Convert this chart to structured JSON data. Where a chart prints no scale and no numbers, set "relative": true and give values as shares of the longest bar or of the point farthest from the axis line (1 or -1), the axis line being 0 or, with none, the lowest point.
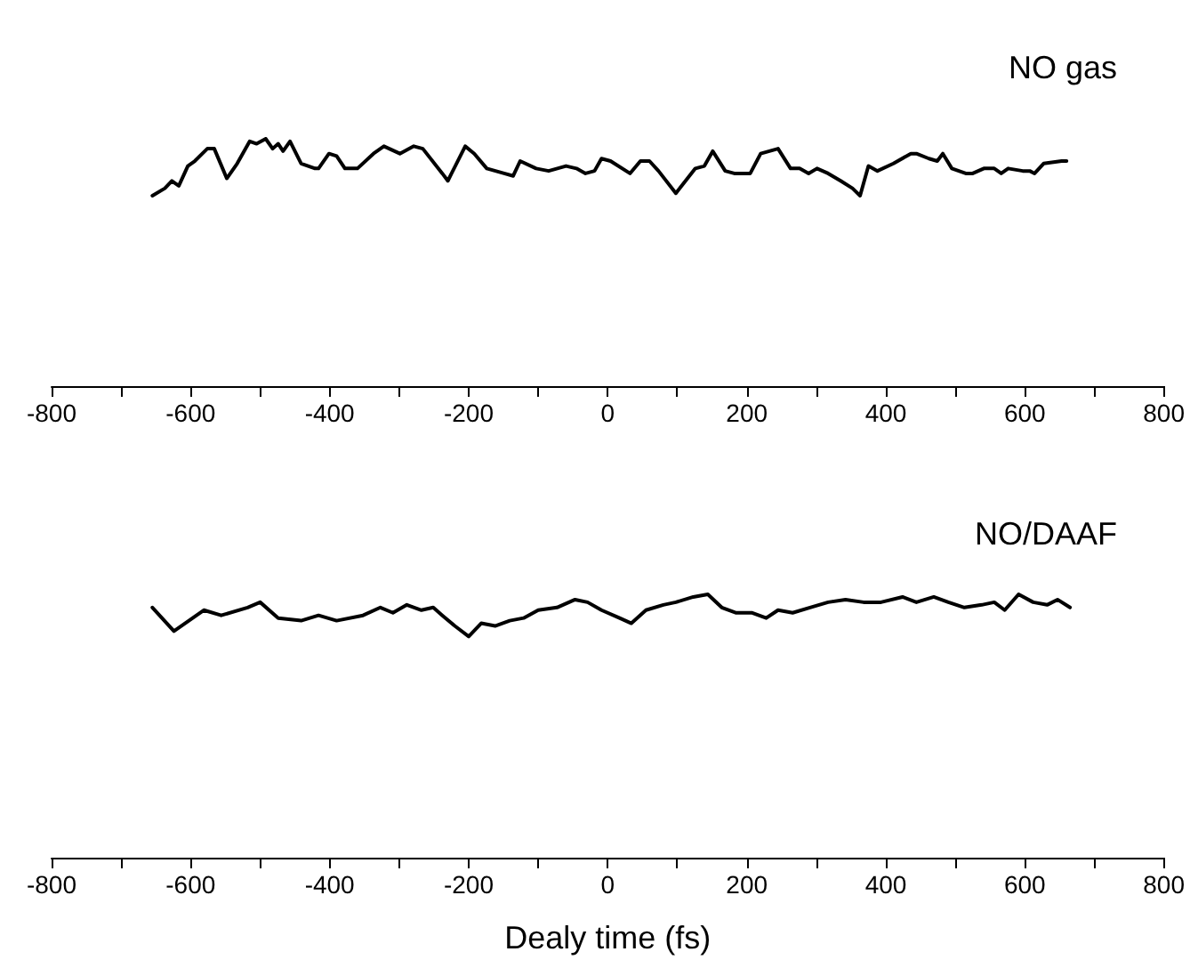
{
  "chart_data": [
    {
      "type": "line",
      "title": "NO gas",
      "relative": true,
      "marker": "none",
      "xlim": [
        -800,
        800
      ],
      "xticks": [
        -800,
        {
          "value": -700,
          "label": null
        },
        -600,
        {
          "value": -500,
          "label": null
        },
        -400,
        {
          "value": -300,
          "label": null
        },
        -200,
        {
          "value": -100,
          "label": null
        },
        0,
        {
          "value": 100,
          "label": null
        },
        200,
        {
          "value": 300,
          "label": null
        },
        400,
        {
          "value": 500,
          "label": null
        },
        600,
        {
          "value": 700,
          "label": null
        },
        800
      ],
      "x": [
        -655,
        -637,
        -627,
        -617,
        -604,
        -594,
        -576,
        -566,
        -548,
        -533,
        -515,
        -505,
        -492,
        -482,
        -474,
        -467,
        -457,
        -441,
        -421,
        -416,
        -401,
        -390,
        -378,
        -360,
        -337,
        -322,
        -299,
        -279,
        -266,
        -238,
        -230,
        -205,
        -192,
        -174,
        -149,
        -136,
        -126,
        -103,
        -85,
        -60,
        -45,
        -32,
        -19,
        -9,
        4,
        32,
        47,
        60,
        73,
        98,
        126,
        139,
        151,
        169,
        182,
        205,
        220,
        245,
        263,
        276,
        289,
        301,
        317,
        335,
        352,
        363,
        375,
        388,
        411,
        436,
        444,
        462,
        474,
        482,
        495,
        515,
        525,
        541,
        556,
        566,
        576,
        597,
        607,
        614,
        627,
        653,
        660
      ],
      "series": [
        {
          "color": "#000000",
          "values": [
            0.77,
            0.8,
            0.83,
            0.81,
            0.89,
            0.91,
            0.96,
            0.96,
            0.84,
            0.9,
            0.99,
            0.98,
            1.0,
            0.96,
            0.98,
            0.95,
            0.99,
            0.9,
            0.88,
            0.88,
            0.94,
            0.93,
            0.88,
            0.88,
            0.94,
            0.97,
            0.94,
            0.97,
            0.96,
            0.86,
            0.83,
            0.97,
            0.94,
            0.88,
            0.86,
            0.85,
            0.91,
            0.88,
            0.87,
            0.89,
            0.88,
            0.86,
            0.87,
            0.92,
            0.91,
            0.86,
            0.91,
            0.91,
            0.87,
            0.78,
            0.88,
            0.89,
            0.95,
            0.87,
            0.86,
            0.86,
            0.94,
            0.96,
            0.88,
            0.88,
            0.86,
            0.88,
            0.86,
            0.83,
            0.8,
            0.77,
            0.89,
            0.87,
            0.9,
            0.94,
            0.94,
            0.92,
            0.91,
            0.94,
            0.88,
            0.86,
            0.86,
            0.88,
            0.88,
            0.86,
            0.88,
            0.87,
            0.87,
            0.86,
            0.9,
            0.91,
            0.91
          ]
        }
      ]
    },
    {
      "type": "line",
      "title": "NO/DAAF",
      "xlabel": "Dealy time (fs)",
      "relative": true,
      "marker": "none",
      "xlim": [
        -800,
        800
      ],
      "xticks": [
        -800,
        {
          "value": -700,
          "label": null
        },
        -600,
        {
          "value": -500,
          "label": null
        },
        -400,
        {
          "value": -300,
          "label": null
        },
        -200,
        {
          "value": -100,
          "label": null
        },
        0,
        {
          "value": 100,
          "label": null
        },
        200,
        {
          "value": 300,
          "label": null
        },
        400,
        {
          "value": 500,
          "label": null
        },
        600,
        {
          "value": 700,
          "label": null
        },
        800
      ],
      "x": [
        -655,
        -624,
        -581,
        -556,
        -518,
        -500,
        -474,
        -441,
        -416,
        -390,
        -352,
        -327,
        -309,
        -289,
        -268,
        -251,
        -238,
        -220,
        -200,
        -182,
        -162,
        -141,
        -121,
        -100,
        -73,
        -47,
        -29,
        -9,
        17,
        34,
        55,
        80,
        98,
        123,
        144,
        164,
        184,
        207,
        228,
        245,
        266,
        291,
        317,
        342,
        368,
        393,
        424,
        444,
        469,
        490,
        513,
        538,
        556,
        571,
        591,
        612,
        632,
        647,
        665
      ],
      "series": [
        {
          "color": "#000000",
          "values": [
            0.95,
            0.86,
            0.94,
            0.92,
            0.95,
            0.97,
            0.91,
            0.9,
            0.92,
            0.9,
            0.92,
            0.95,
            0.93,
            0.96,
            0.94,
            0.95,
            0.92,
            0.88,
            0.84,
            0.89,
            0.88,
            0.9,
            0.91,
            0.94,
            0.95,
            0.98,
            0.97,
            0.94,
            0.91,
            0.89,
            0.94,
            0.96,
            0.97,
            0.99,
            1.0,
            0.95,
            0.93,
            0.93,
            0.91,
            0.94,
            0.93,
            0.95,
            0.97,
            0.98,
            0.97,
            0.97,
            0.99,
            0.97,
            0.99,
            0.97,
            0.95,
            0.96,
            0.97,
            0.94,
            1.0,
            0.97,
            0.96,
            0.98,
            0.95
          ]
        }
      ]
    }
  ]
}
